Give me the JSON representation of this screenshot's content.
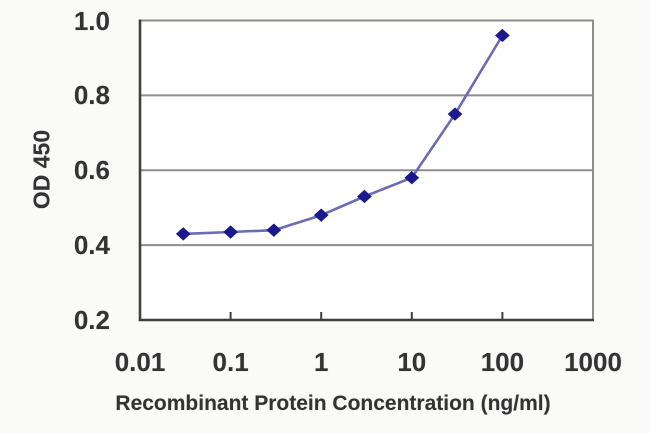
{
  "page": {
    "background": "#fafaf8"
  },
  "chart_data": {
    "type": "line",
    "title": "",
    "xlabel": "Recombinant Protein Concentration (ng/ml)",
    "ylabel": "OD 450",
    "x_scale": "log10",
    "xlim": [
      0.01,
      1000
    ],
    "ylim": [
      0.2,
      1.0
    ],
    "grid": "horizontal-only",
    "legend": "none",
    "marker": "diamond",
    "x_ticks": [
      0.01,
      0.1,
      1,
      10,
      100,
      1000
    ],
    "x_tick_labels": [
      "0.01",
      "0.1",
      "1",
      "10",
      "100",
      "1000"
    ],
    "y_ticks": [
      0.2,
      0.4,
      0.6,
      0.8,
      1.0
    ],
    "y_tick_labels": [
      "0.2",
      "0.4",
      "0.6",
      "0.8",
      "1.0"
    ],
    "series": [
      {
        "name": "OD 450",
        "x": [
          0.03,
          0.1,
          0.3,
          1,
          3,
          10,
          30,
          100
        ],
        "y": [
          0.43,
          0.435,
          0.44,
          0.48,
          0.53,
          0.58,
          0.75,
          0.96
        ]
      }
    ],
    "colors": {
      "line": "#6a6cb4",
      "marker": "#1a1a8e",
      "grid": "#8d8d8d",
      "border": "#8d8d8d",
      "axis": "#3f3f3f",
      "text": "#333333",
      "plot_background": "#ffffff",
      "page_background": "#fafaf8"
    }
  }
}
